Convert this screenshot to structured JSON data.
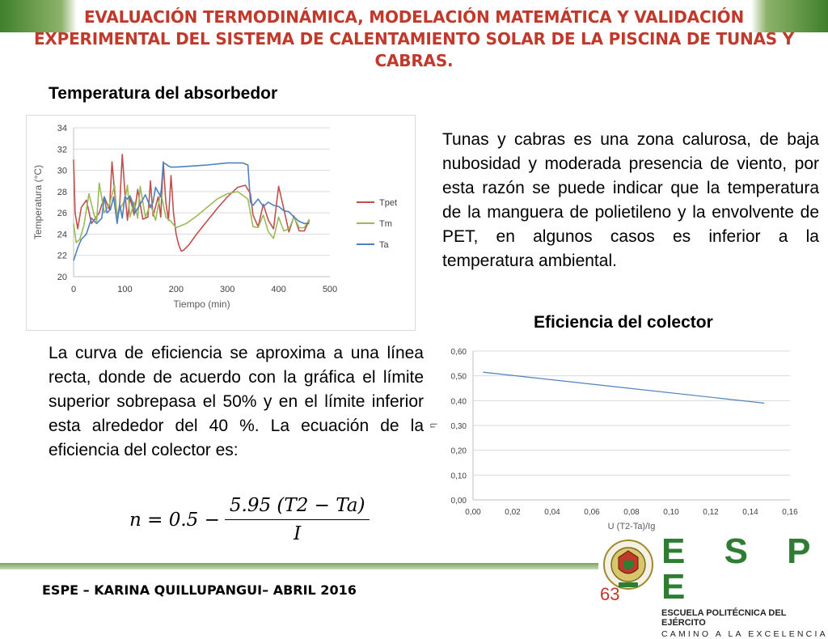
{
  "header": {
    "title": "EVALUACIÓN TERMODINÁMICA, MODELACIÓN MATEMÁTICA Y VALIDACIÓN EXPERIMENTAL DEL SISTEMA DE CALENTAMIENTO SOLAR DE LA PISCINA DE TUNAS Y CABRAS."
  },
  "colors": {
    "title": "#c0392b",
    "brand": "#2e7d32",
    "footer_bar": "#7aa35c"
  },
  "sections": {
    "absorber_heading": "Temperatura del absorbedor",
    "efficiency_heading": "Eficiencia del colector"
  },
  "paragraphs": {
    "climate": "Tunas y cabras es una zona calurosa, de baja nubosidad y moderada presencia de viento, por esta razón se puede indicar que la temperatura de la manguera de polietileno y la envolvente de PET, en algunos casos es inferior a la temperatura ambiental.",
    "efficiency": "La curva de eficiencia se aproxima a una línea recta, donde de acuerdo con la gráfica el límite superior sobrepasa el 50% y en el límite inferior esta alrededor del 40 %. La ecuación de la eficiencia del colector es:"
  },
  "formula": {
    "lhs": "n = 0.5 −",
    "numerator": "5.95 (T2 − Ta)",
    "denominator": "I"
  },
  "footer": {
    "text": "ESPE – KARINA QUILLUPANGUI– ABRIL 2016",
    "page_number": "63"
  },
  "logo": {
    "name": "E S P E",
    "subtitle": "ESCUELA POLITÉCNICA DEL EJÉRCITO",
    "motto": "CAMINO A LA EXCELENCIA",
    "seal_text": "ESCUELA POLITÉCNICA DEL EJÉRCITO · ECUADOR"
  },
  "chart_data": [
    {
      "type": "line",
      "xlabel": "Tiempo (min)",
      "ylabel": "Temperatura (°C)",
      "xlim": [
        0,
        500
      ],
      "ylim": [
        20,
        34
      ],
      "xticks": [
        0,
        100,
        200,
        300,
        400,
        500
      ],
      "yticks": [
        20,
        22,
        24,
        26,
        28,
        30,
        32,
        34
      ],
      "grid": true,
      "legend": "right",
      "series": [
        {
          "name": "Tpet",
          "color": "#c0504d",
          "x": [
            0,
            3,
            8,
            15,
            25,
            35,
            50,
            60,
            70,
            75,
            80,
            85,
            90,
            95,
            100,
            105,
            110,
            118,
            125,
            135,
            145,
            150,
            155,
            165,
            170,
            175,
            180,
            185,
            190,
            195,
            200,
            205,
            210,
            215,
            225,
            240,
            260,
            280,
            300,
            320,
            335,
            345,
            350,
            360,
            370,
            380,
            390,
            400,
            410,
            420,
            430,
            440,
            450,
            460
          ],
          "y": [
            31,
            26,
            24.5,
            26.5,
            27.2,
            25,
            26,
            27.5,
            26.3,
            30.8,
            28,
            25.5,
            26.8,
            31.5,
            28,
            25.3,
            27.5,
            25.8,
            28.2,
            25.4,
            25.6,
            29,
            25.7,
            27.5,
            25.6,
            30.8,
            27,
            25.3,
            29.5,
            26,
            24,
            23,
            22.4,
            22.5,
            23,
            24,
            25.2,
            26.4,
            27.5,
            28.4,
            28.6,
            27.8,
            25.8,
            24.7,
            26.8,
            25.3,
            24.5,
            28.5,
            26.4,
            24.2,
            25.7,
            24.3,
            24.3,
            25.3
          ]
        },
        {
          "name": "Tm",
          "color": "#9bbb59",
          "x": [
            0,
            5,
            12,
            20,
            30,
            40,
            45,
            50,
            60,
            70,
            80,
            85,
            90,
            100,
            105,
            110,
            118,
            125,
            130,
            140,
            150,
            160,
            170,
            180,
            190,
            200,
            220,
            240,
            260,
            280,
            300,
            320,
            340,
            350,
            360,
            370,
            380,
            390,
            400,
            410,
            420,
            430,
            440,
            450,
            460
          ],
          "y": [
            25,
            23.2,
            23.5,
            24.8,
            27.8,
            25.8,
            25.2,
            28.8,
            26,
            26.8,
            28.6,
            25.5,
            26.3,
            27.2,
            28.6,
            25.6,
            27,
            25.5,
            28.5,
            25.6,
            26.8,
            25.3,
            28,
            25.6,
            25.2,
            24.6,
            25,
            25.7,
            26.5,
            27.3,
            27.8,
            28,
            27.3,
            24.7,
            24.6,
            25.8,
            24.2,
            23.6,
            25.6,
            24.3,
            24.5,
            25.6,
            24.6,
            24.6,
            25.4
          ]
        },
        {
          "name": "Ta",
          "color": "#4f81bd",
          "x": [
            0,
            8,
            15,
            25,
            35,
            45,
            55,
            60,
            65,
            72,
            78,
            85,
            90,
            95,
            100,
            105,
            110,
            115,
            120,
            130,
            140,
            150,
            155,
            160,
            170,
            175,
            180,
            185,
            190,
            200,
            230,
            260,
            300,
            330,
            340,
            345,
            350,
            360,
            370,
            380,
            390,
            400,
            410,
            420,
            430,
            440,
            450,
            460
          ],
          "y": [
            21.5,
            22.7,
            23.5,
            24,
            25.5,
            25,
            25.5,
            27.5,
            26,
            26.3,
            27.5,
            25,
            26.8,
            25.5,
            27.5,
            27.3,
            27.6,
            27,
            26,
            26.8,
            27.7,
            26.5,
            27,
            28.4,
            27.5,
            30.7,
            30.6,
            30.4,
            30.3,
            30.3,
            30.4,
            30.5,
            30.7,
            30.7,
            30.5,
            27,
            26.7,
            27.3,
            26.6,
            27,
            26.7,
            26.6,
            26.2,
            26.1,
            25.6,
            25.2,
            25,
            25
          ]
        }
      ]
    },
    {
      "type": "line",
      "xlabel": "U (T2-Ta)/Ig",
      "ylabel": "η",
      "xlim": [
        0,
        0.16
      ],
      "ylim": [
        0,
        0.6
      ],
      "xticks": [
        "0,00",
        "0,02",
        "0,04",
        "0,06",
        "0,08",
        "0,10",
        "0,12",
        "0,14",
        "0,16"
      ],
      "yticks": [
        "0,00",
        "0,10",
        "0,20",
        "0,30",
        "0,40",
        "0,50",
        "0,60"
      ],
      "grid": true,
      "series": [
        {
          "color": "#4f81bd",
          "x": [
            0.005,
            0.147
          ],
          "y": [
            0.515,
            0.39
          ]
        }
      ]
    }
  ]
}
